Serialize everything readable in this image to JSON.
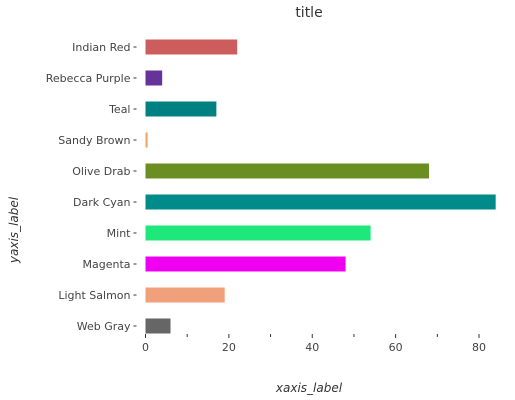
{
  "chart_data": {
    "type": "bar",
    "orientation": "horizontal",
    "title": "title",
    "xlabel": "xaxis_label",
    "ylabel": "yaxis_label",
    "xlim": [
      0,
      85
    ],
    "xticks": [
      0,
      20,
      40,
      60,
      80
    ],
    "grid": false,
    "categories": [
      "Web Gray",
      "Light Salmon",
      "Magenta",
      "Mint",
      "Dark Cyan",
      "Olive Drab",
      "Sandy Brown",
      "Teal",
      "Rebecca Purple",
      "Indian Red"
    ],
    "values": [
      6,
      19,
      48,
      54,
      84,
      68,
      0.5,
      17,
      4,
      22
    ],
    "colors": [
      "#666666",
      "#f0a07a",
      "#f000f0",
      "#1ee87a",
      "#008b8b",
      "#6b8e23",
      "#f4a460",
      "#008080",
      "#663399",
      "#cd5c5c"
    ]
  }
}
